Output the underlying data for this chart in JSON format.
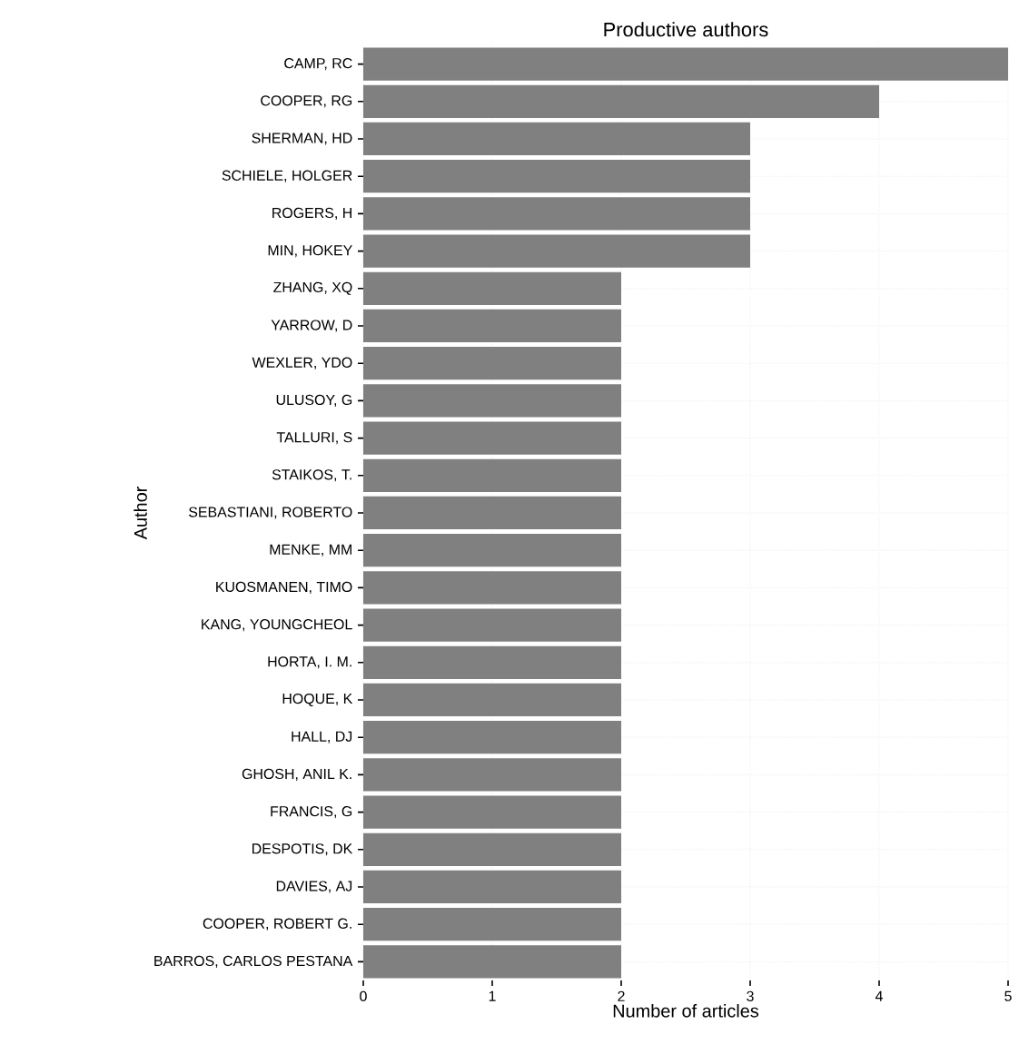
{
  "chart_data": {
    "type": "bar",
    "orientation": "horizontal",
    "title": "Productive authors",
    "xlabel": "Number of articles",
    "ylabel": "Author",
    "categories": [
      "CAMP, RC",
      "COOPER, RG",
      "SHERMAN, HD",
      "SCHIELE, HOLGER",
      "ROGERS, H",
      "MIN, HOKEY",
      "ZHANG, XQ",
      "YARROW, D",
      "WEXLER, YDO",
      "ULUSOY, G",
      "TALLURI, S",
      "STAIKOS, T.",
      "SEBASTIANI, ROBERTO",
      "MENKE, MM",
      "KUOSMANEN, TIMO",
      "KANG, YOUNGCHEOL",
      "HORTA, I. M.",
      "HOQUE, K",
      "HALL, DJ",
      "GHOSH, ANIL K.",
      "FRANCIS, G",
      "DESPOTIS, DK",
      "DAVIES, AJ",
      "COOPER, ROBERT G.",
      "BARROS, CARLOS PESTANA"
    ],
    "values": [
      5,
      4,
      3,
      3,
      3,
      3,
      2,
      2,
      2,
      2,
      2,
      2,
      2,
      2,
      2,
      2,
      2,
      2,
      2,
      2,
      2,
      2,
      2,
      2,
      2
    ],
    "color": "#808080",
    "xlim": [
      0,
      5
    ],
    "xticks": [
      0,
      1,
      2,
      3,
      4,
      5
    ],
    "grid": true
  }
}
